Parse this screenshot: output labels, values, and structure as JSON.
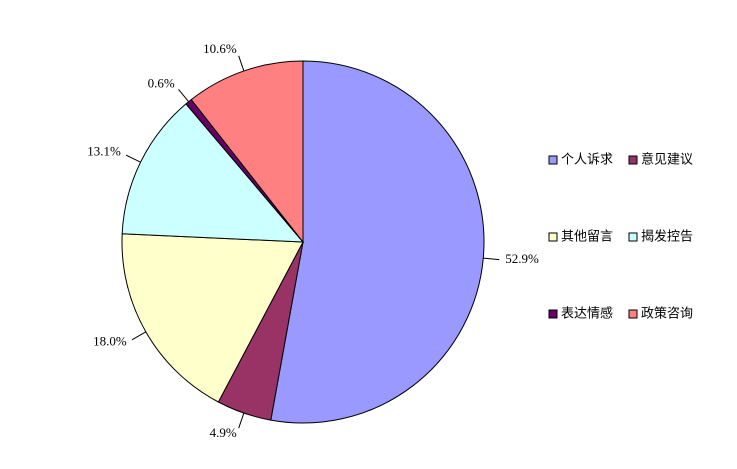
{
  "chart_data": {
    "type": "pie",
    "categories": [
      "个人诉求",
      "意见建议",
      "其他留言",
      "揭发控告",
      "表达情感",
      "政策咨询"
    ],
    "values": [
      52.9,
      4.9,
      18.0,
      13.1,
      0.6,
      10.6
    ],
    "value_labels": [
      "52.9%",
      "4.9%",
      "18.0%",
      "13.1%",
      "0.6%",
      "10.6%"
    ],
    "colors": [
      "#9999ff",
      "#993366",
      "#ffffcc",
      "#ccffff",
      "#660066",
      "#ff8080"
    ],
    "legend": "right"
  }
}
